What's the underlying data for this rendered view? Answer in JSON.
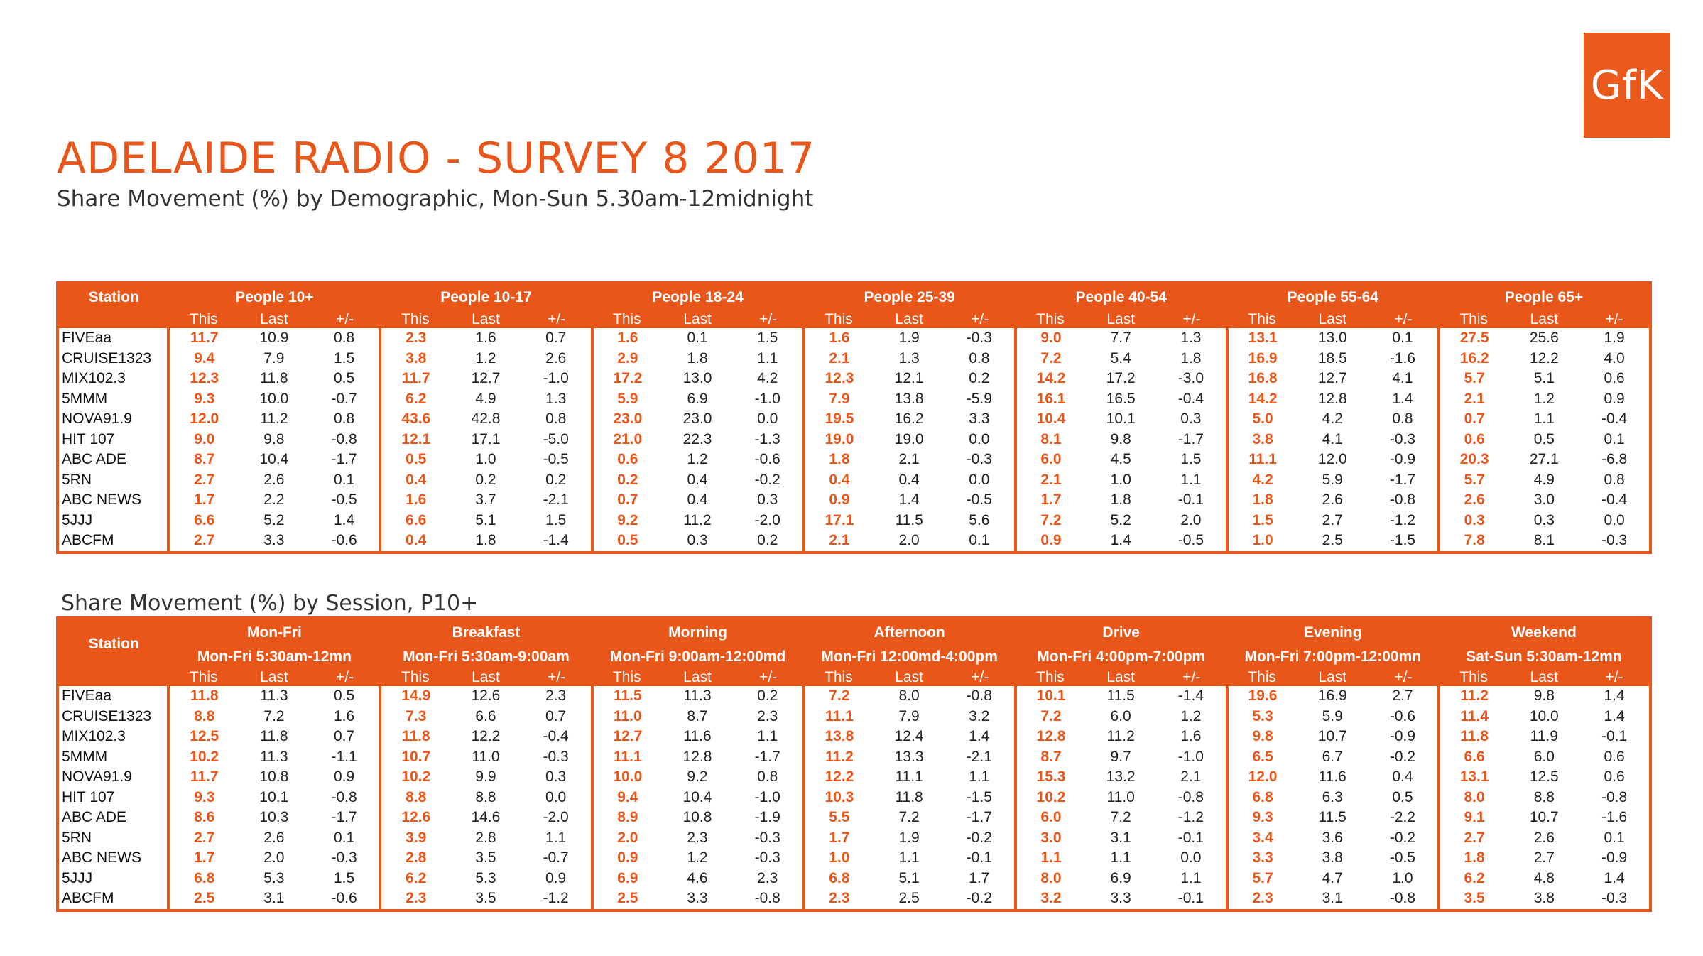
{
  "logo": "GfK",
  "title": "ADELAIDE RADIO - SURVEY 8 2017",
  "subtitle": "Share Movement (%) by Demographic, Mon-Sun 5.30am-12midnight",
  "subtitle2": "Share Movement (%) by Session, P10+",
  "accent_color": "#e8561a",
  "station_header": "Station",
  "col_labels": [
    "This",
    "Last",
    "+/-"
  ],
  "demographic_table": {
    "groups": [
      "People 10+",
      "People 10-17",
      "People 18-24",
      "People 25-39",
      "People 40-54",
      "People 55-64",
      "People 65+"
    ],
    "rows": [
      {
        "station": "FIVEaa",
        "values": [
          [
            "11.7",
            "10.9",
            "0.8"
          ],
          [
            "2.3",
            "1.6",
            "0.7"
          ],
          [
            "1.6",
            "0.1",
            "1.5"
          ],
          [
            "1.6",
            "1.9",
            "-0.3"
          ],
          [
            "9.0",
            "7.7",
            "1.3"
          ],
          [
            "13.1",
            "13.0",
            "0.1"
          ],
          [
            "27.5",
            "25.6",
            "1.9"
          ]
        ]
      },
      {
        "station": "CRUISE1323",
        "values": [
          [
            "9.4",
            "7.9",
            "1.5"
          ],
          [
            "3.8",
            "1.2",
            "2.6"
          ],
          [
            "2.9",
            "1.8",
            "1.1"
          ],
          [
            "2.1",
            "1.3",
            "0.8"
          ],
          [
            "7.2",
            "5.4",
            "1.8"
          ],
          [
            "16.9",
            "18.5",
            "-1.6"
          ],
          [
            "16.2",
            "12.2",
            "4.0"
          ]
        ]
      },
      {
        "station": "MIX102.3",
        "values": [
          [
            "12.3",
            "11.8",
            "0.5"
          ],
          [
            "11.7",
            "12.7",
            "-1.0"
          ],
          [
            "17.2",
            "13.0",
            "4.2"
          ],
          [
            "12.3",
            "12.1",
            "0.2"
          ],
          [
            "14.2",
            "17.2",
            "-3.0"
          ],
          [
            "16.8",
            "12.7",
            "4.1"
          ],
          [
            "5.7",
            "5.1",
            "0.6"
          ]
        ]
      },
      {
        "station": "5MMM",
        "values": [
          [
            "9.3",
            "10.0",
            "-0.7"
          ],
          [
            "6.2",
            "4.9",
            "1.3"
          ],
          [
            "5.9",
            "6.9",
            "-1.0"
          ],
          [
            "7.9",
            "13.8",
            "-5.9"
          ],
          [
            "16.1",
            "16.5",
            "-0.4"
          ],
          [
            "14.2",
            "12.8",
            "1.4"
          ],
          [
            "2.1",
            "1.2",
            "0.9"
          ]
        ]
      },
      {
        "station": "NOVA91.9",
        "values": [
          [
            "12.0",
            "11.2",
            "0.8"
          ],
          [
            "43.6",
            "42.8",
            "0.8"
          ],
          [
            "23.0",
            "23.0",
            "0.0"
          ],
          [
            "19.5",
            "16.2",
            "3.3"
          ],
          [
            "10.4",
            "10.1",
            "0.3"
          ],
          [
            "5.0",
            "4.2",
            "0.8"
          ],
          [
            "0.7",
            "1.1",
            "-0.4"
          ]
        ]
      },
      {
        "station": "HIT 107",
        "values": [
          [
            "9.0",
            "9.8",
            "-0.8"
          ],
          [
            "12.1",
            "17.1",
            "-5.0"
          ],
          [
            "21.0",
            "22.3",
            "-1.3"
          ],
          [
            "19.0",
            "19.0",
            "0.0"
          ],
          [
            "8.1",
            "9.8",
            "-1.7"
          ],
          [
            "3.8",
            "4.1",
            "-0.3"
          ],
          [
            "0.6",
            "0.5",
            "0.1"
          ]
        ]
      },
      {
        "station": "ABC ADE",
        "values": [
          [
            "8.7",
            "10.4",
            "-1.7"
          ],
          [
            "0.5",
            "1.0",
            "-0.5"
          ],
          [
            "0.6",
            "1.2",
            "-0.6"
          ],
          [
            "1.8",
            "2.1",
            "-0.3"
          ],
          [
            "6.0",
            "4.5",
            "1.5"
          ],
          [
            "11.1",
            "12.0",
            "-0.9"
          ],
          [
            "20.3",
            "27.1",
            "-6.8"
          ]
        ]
      },
      {
        "station": "5RN",
        "values": [
          [
            "2.7",
            "2.6",
            "0.1"
          ],
          [
            "0.4",
            "0.2",
            "0.2"
          ],
          [
            "0.2",
            "0.4",
            "-0.2"
          ],
          [
            "0.4",
            "0.4",
            "0.0"
          ],
          [
            "2.1",
            "1.0",
            "1.1"
          ],
          [
            "4.2",
            "5.9",
            "-1.7"
          ],
          [
            "5.7",
            "4.9",
            "0.8"
          ]
        ]
      },
      {
        "station": "ABC NEWS",
        "values": [
          [
            "1.7",
            "2.2",
            "-0.5"
          ],
          [
            "1.6",
            "3.7",
            "-2.1"
          ],
          [
            "0.7",
            "0.4",
            "0.3"
          ],
          [
            "0.9",
            "1.4",
            "-0.5"
          ],
          [
            "1.7",
            "1.8",
            "-0.1"
          ],
          [
            "1.8",
            "2.6",
            "-0.8"
          ],
          [
            "2.6",
            "3.0",
            "-0.4"
          ]
        ]
      },
      {
        "station": "5JJJ",
        "values": [
          [
            "6.6",
            "5.2",
            "1.4"
          ],
          [
            "6.6",
            "5.1",
            "1.5"
          ],
          [
            "9.2",
            "11.2",
            "-2.0"
          ],
          [
            "17.1",
            "11.5",
            "5.6"
          ],
          [
            "7.2",
            "5.2",
            "2.0"
          ],
          [
            "1.5",
            "2.7",
            "-1.2"
          ],
          [
            "0.3",
            "0.3",
            "0.0"
          ]
        ]
      },
      {
        "station": "ABCFM",
        "values": [
          [
            "2.7",
            "3.3",
            "-0.6"
          ],
          [
            "0.4",
            "1.8",
            "-1.4"
          ],
          [
            "0.5",
            "0.3",
            "0.2"
          ],
          [
            "2.1",
            "2.0",
            "0.1"
          ],
          [
            "0.9",
            "1.4",
            "-0.5"
          ],
          [
            "1.0",
            "2.5",
            "-1.5"
          ],
          [
            "7.8",
            "8.1",
            "-0.3"
          ]
        ]
      }
    ]
  },
  "session_table": {
    "groups": [
      "Mon-Fri",
      "Breakfast",
      "Morning",
      "Afternoon",
      "Drive",
      "Evening",
      "Weekend"
    ],
    "sessions": [
      "Mon-Fri 5:30am-12mn",
      "Mon-Fri 5:30am-9:00am",
      "Mon-Fri 9:00am-12:00md",
      "Mon-Fri 12:00md-4:00pm",
      "Mon-Fri 4:00pm-7:00pm",
      "Mon-Fri 7:00pm-12:00mn",
      "Sat-Sun 5:30am-12mn"
    ],
    "rows": [
      {
        "station": "FIVEaa",
        "values": [
          [
            "11.8",
            "11.3",
            "0.5"
          ],
          [
            "14.9",
            "12.6",
            "2.3"
          ],
          [
            "11.5",
            "11.3",
            "0.2"
          ],
          [
            "7.2",
            "8.0",
            "-0.8"
          ],
          [
            "10.1",
            "11.5",
            "-1.4"
          ],
          [
            "19.6",
            "16.9",
            "2.7"
          ],
          [
            "11.2",
            "9.8",
            "1.4"
          ]
        ]
      },
      {
        "station": "CRUISE1323",
        "values": [
          [
            "8.8",
            "7.2",
            "1.6"
          ],
          [
            "7.3",
            "6.6",
            "0.7"
          ],
          [
            "11.0",
            "8.7",
            "2.3"
          ],
          [
            "11.1",
            "7.9",
            "3.2"
          ],
          [
            "7.2",
            "6.0",
            "1.2"
          ],
          [
            "5.3",
            "5.9",
            "-0.6"
          ],
          [
            "11.4",
            "10.0",
            "1.4"
          ]
        ]
      },
      {
        "station": "MIX102.3",
        "values": [
          [
            "12.5",
            "11.8",
            "0.7"
          ],
          [
            "11.8",
            "12.2",
            "-0.4"
          ],
          [
            "12.7",
            "11.6",
            "1.1"
          ],
          [
            "13.8",
            "12.4",
            "1.4"
          ],
          [
            "12.8",
            "11.2",
            "1.6"
          ],
          [
            "9.8",
            "10.7",
            "-0.9"
          ],
          [
            "11.8",
            "11.9",
            "-0.1"
          ]
        ]
      },
      {
        "station": "5MMM",
        "values": [
          [
            "10.2",
            "11.3",
            "-1.1"
          ],
          [
            "10.7",
            "11.0",
            "-0.3"
          ],
          [
            "11.1",
            "12.8",
            "-1.7"
          ],
          [
            "11.2",
            "13.3",
            "-2.1"
          ],
          [
            "8.7",
            "9.7",
            "-1.0"
          ],
          [
            "6.5",
            "6.7",
            "-0.2"
          ],
          [
            "6.6",
            "6.0",
            "0.6"
          ]
        ]
      },
      {
        "station": "NOVA91.9",
        "values": [
          [
            "11.7",
            "10.8",
            "0.9"
          ],
          [
            "10.2",
            "9.9",
            "0.3"
          ],
          [
            "10.0",
            "9.2",
            "0.8"
          ],
          [
            "12.2",
            "11.1",
            "1.1"
          ],
          [
            "15.3",
            "13.2",
            "2.1"
          ],
          [
            "12.0",
            "11.6",
            "0.4"
          ],
          [
            "13.1",
            "12.5",
            "0.6"
          ]
        ]
      },
      {
        "station": "HIT 107",
        "values": [
          [
            "9.3",
            "10.1",
            "-0.8"
          ],
          [
            "8.8",
            "8.8",
            "0.0"
          ],
          [
            "9.4",
            "10.4",
            "-1.0"
          ],
          [
            "10.3",
            "11.8",
            "-1.5"
          ],
          [
            "10.2",
            "11.0",
            "-0.8"
          ],
          [
            "6.8",
            "6.3",
            "0.5"
          ],
          [
            "8.0",
            "8.8",
            "-0.8"
          ]
        ]
      },
      {
        "station": "ABC ADE",
        "values": [
          [
            "8.6",
            "10.3",
            "-1.7"
          ],
          [
            "12.6",
            "14.6",
            "-2.0"
          ],
          [
            "8.9",
            "10.8",
            "-1.9"
          ],
          [
            "5.5",
            "7.2",
            "-1.7"
          ],
          [
            "6.0",
            "7.2",
            "-1.2"
          ],
          [
            "9.3",
            "11.5",
            "-2.2"
          ],
          [
            "9.1",
            "10.7",
            "-1.6"
          ]
        ]
      },
      {
        "station": "5RN",
        "values": [
          [
            "2.7",
            "2.6",
            "0.1"
          ],
          [
            "3.9",
            "2.8",
            "1.1"
          ],
          [
            "2.0",
            "2.3",
            "-0.3"
          ],
          [
            "1.7",
            "1.9",
            "-0.2"
          ],
          [
            "3.0",
            "3.1",
            "-0.1"
          ],
          [
            "3.4",
            "3.6",
            "-0.2"
          ],
          [
            "2.7",
            "2.6",
            "0.1"
          ]
        ]
      },
      {
        "station": "ABC NEWS",
        "values": [
          [
            "1.7",
            "2.0",
            "-0.3"
          ],
          [
            "2.8",
            "3.5",
            "-0.7"
          ],
          [
            "0.9",
            "1.2",
            "-0.3"
          ],
          [
            "1.0",
            "1.1",
            "-0.1"
          ],
          [
            "1.1",
            "1.1",
            "0.0"
          ],
          [
            "3.3",
            "3.8",
            "-0.5"
          ],
          [
            "1.8",
            "2.7",
            "-0.9"
          ]
        ]
      },
      {
        "station": "5JJJ",
        "values": [
          [
            "6.8",
            "5.3",
            "1.5"
          ],
          [
            "6.2",
            "5.3",
            "0.9"
          ],
          [
            "6.9",
            "4.6",
            "2.3"
          ],
          [
            "6.8",
            "5.1",
            "1.7"
          ],
          [
            "8.0",
            "6.9",
            "1.1"
          ],
          [
            "5.7",
            "4.7",
            "1.0"
          ],
          [
            "6.2",
            "4.8",
            "1.4"
          ]
        ]
      },
      {
        "station": "ABCFM",
        "values": [
          [
            "2.5",
            "3.1",
            "-0.6"
          ],
          [
            "2.3",
            "3.5",
            "-1.2"
          ],
          [
            "2.5",
            "3.3",
            "-0.8"
          ],
          [
            "2.3",
            "2.5",
            "-0.2"
          ],
          [
            "3.2",
            "3.3",
            "-0.1"
          ],
          [
            "2.3",
            "3.1",
            "-0.8"
          ],
          [
            "3.5",
            "3.8",
            "-0.3"
          ]
        ]
      }
    ]
  }
}
